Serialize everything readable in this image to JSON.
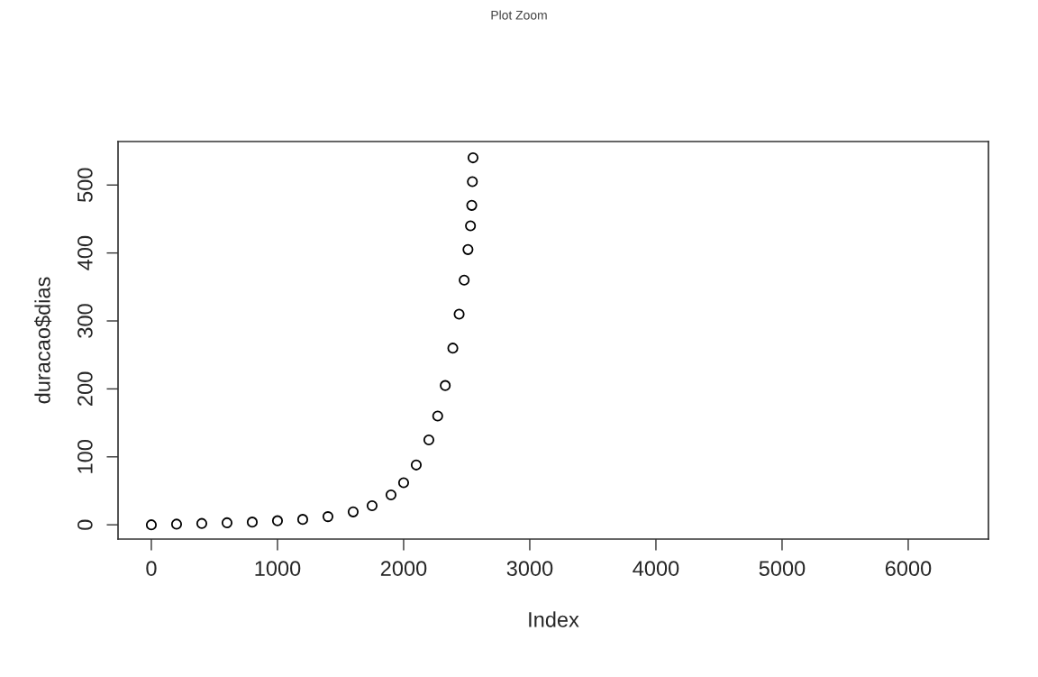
{
  "chart_data": {
    "type": "scatter",
    "xlabel": "Index",
    "ylabel": "duracao$dias",
    "annotations": [
      "Plot Zoom"
    ],
    "x": [
      0,
      200,
      400,
      600,
      800,
      1000,
      1200,
      1400,
      1600,
      1750,
      1900,
      2000,
      2100,
      2200,
      2270,
      2330,
      2390,
      2440,
      2480,
      2510,
      2530,
      2540,
      2545,
      2550
    ],
    "series": [
      {
        "color": "#000000",
        "values": [
          0,
          1,
          2,
          3,
          4,
          6,
          8,
          12,
          19,
          28,
          44,
          62,
          88,
          125,
          160,
          205,
          260,
          310,
          360,
          405,
          440,
          470,
          505,
          540
        ]
      }
    ],
    "xlim": [
      -264,
      6636
    ],
    "ylim": [
      -21,
      564
    ],
    "xticks": [
      0,
      1000,
      2000,
      3000,
      4000,
      5000,
      6000
    ],
    "yticks": [
      0,
      100,
      200,
      300,
      400,
      500
    ],
    "marker": "circle",
    "grid": false,
    "legend": false
  }
}
